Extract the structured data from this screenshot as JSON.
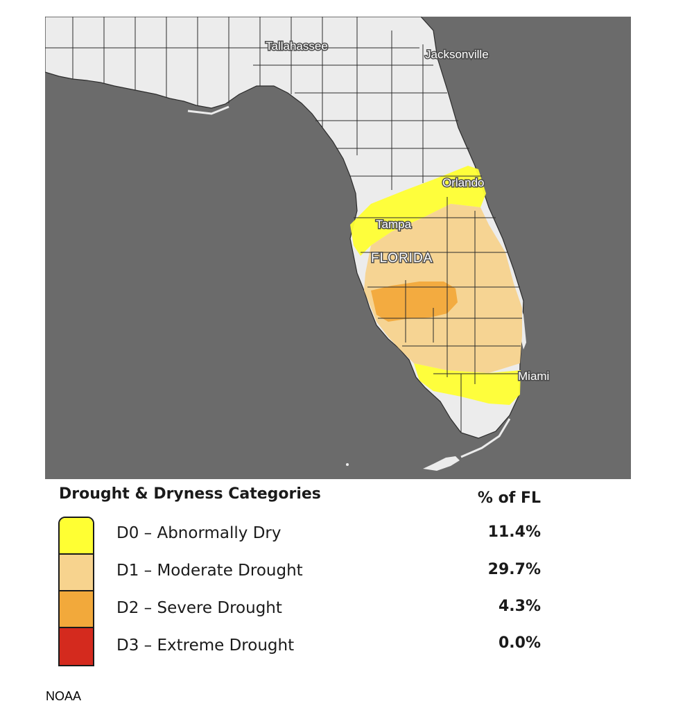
{
  "map": {
    "cities": {
      "tallahassee": "Tallahassee",
      "jacksonville": "Jacksonville",
      "orlando": "Orlando",
      "tampa": "Tampa",
      "miami": "Miami"
    },
    "state_label": "FLORIDA",
    "colors": {
      "water": "#6b6b6b",
      "land": "#ececec",
      "county_border": "#2b2b2b"
    }
  },
  "legend": {
    "title": "Drought & Dryness Categories",
    "percent_header": "% of FL",
    "categories": [
      {
        "label": "D0 – Abnormally Dry",
        "percent": "11.4%",
        "color": "#ffff33"
      },
      {
        "label": "D1 – Moderate Drought",
        "percent": "29.7%",
        "color": "#f7d38e"
      },
      {
        "label": "D2 – Severe Drought",
        "percent": "4.3%",
        "color": "#f2a93b"
      },
      {
        "label": "D3 – Extreme Drought",
        "percent": "0.0%",
        "color": "#d42a1e"
      }
    ]
  },
  "source": "NOAA"
}
